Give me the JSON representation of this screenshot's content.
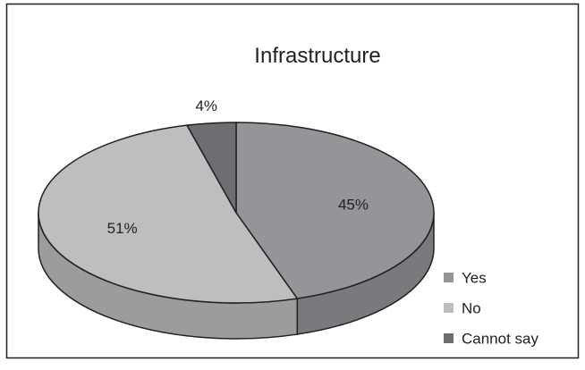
{
  "chart_data": {
    "type": "pie",
    "title": "Infrastructure",
    "slices": [
      {
        "label": "Yes",
        "value": 45,
        "value_label": "45%",
        "color": "#939598"
      },
      {
        "label": "No",
        "value": 51,
        "value_label": "51%",
        "color": "#bcbec0"
      },
      {
        "label": "Cannot say",
        "value": 4,
        "value_label": "4%",
        "color": "#6d6e71"
      }
    ],
    "legend_position": "bottom-right",
    "style": "3d"
  }
}
